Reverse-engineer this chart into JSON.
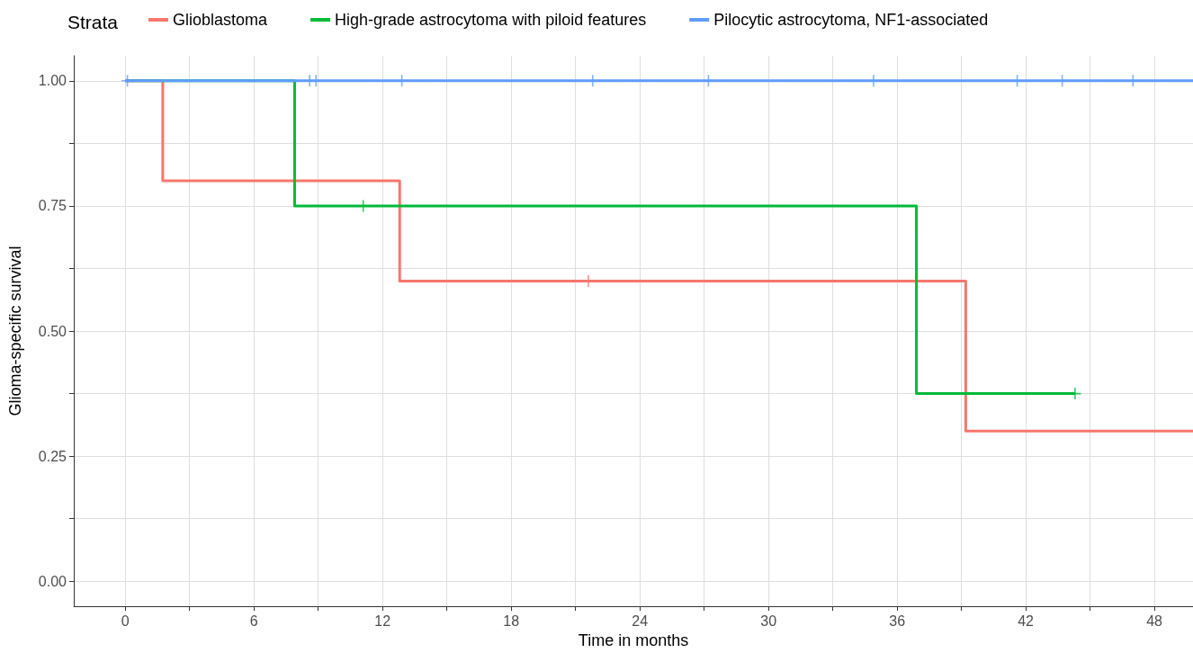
{
  "chart_data": {
    "type": "step",
    "xlabel": "Time in months",
    "ylabel": "Glioma-specific survival",
    "legend_title": "Strata",
    "legend": "top left",
    "grid": true,
    "line_style": "solid",
    "xlim": [
      -2.4,
      49.8
    ],
    "ylim": [
      -0.05,
      1.05
    ],
    "xticks": [
      0,
      {
        "value": 3,
        "label": null
      },
      6,
      {
        "value": 9,
        "label": null
      },
      12,
      {
        "value": 15,
        "label": null
      },
      18,
      {
        "value": 21,
        "label": null
      },
      24,
      {
        "value": 27,
        "label": null
      },
      30,
      {
        "value": 33,
        "label": null
      },
      36,
      {
        "value": 39,
        "label": null
      },
      42,
      {
        "value": 45,
        "label": null
      },
      48
    ],
    "yticks": [
      {
        "value": 0,
        "label": "0.00"
      },
      {
        "value": 0.125,
        "label": null
      },
      {
        "value": 0.25,
        "label": "0.25"
      },
      {
        "value": 0.375,
        "label": null
      },
      {
        "value": 0.5,
        "label": "0.50"
      },
      {
        "value": 0.625,
        "label": null
      },
      {
        "value": 0.75,
        "label": "0.75"
      },
      {
        "value": 0.875,
        "label": null
      },
      {
        "value": 1,
        "label": "1.00"
      }
    ],
    "series": [
      {
        "name": "Glioblastoma",
        "color": "#f8766d",
        "x": [
          0,
          1.75,
          12.8,
          39.2,
          49.8
        ],
        "values": [
          1,
          0.8,
          0.6,
          0.3,
          0.3
        ]
      },
      {
        "name": "High-grade astrocytoma with piloid features",
        "color": "#00ba38",
        "x": [
          0,
          7.9,
          36.9,
          44.3
        ],
        "values": [
          1,
          0.75,
          0.375,
          0.375
        ]
      },
      {
        "name": "Pilocytic astrocytoma, NF1-associated",
        "color": "#619cff",
        "x": [
          0,
          49.8
        ],
        "values": [
          1,
          1
        ]
      },
      {
        "type": "scatter",
        "marker": "cross",
        "color": "#f8766d",
        "x": [
          21.6
        ],
        "values": [
          0.6
        ]
      },
      {
        "type": "scatter",
        "marker": "cross",
        "color": "#00ba38",
        "x": [
          11.1,
          44.3
        ],
        "values": [
          0.75,
          0.375
        ]
      },
      {
        "type": "scatter",
        "marker": "cross",
        "color": "#619cff",
        "x": [
          0.1,
          8.6,
          8.9,
          12.9,
          21.8,
          27.2,
          34.9,
          41.6,
          43.7,
          47.0
        ],
        "values": [
          1,
          1,
          1,
          1,
          1,
          1,
          1,
          1,
          1,
          1
        ]
      }
    ]
  }
}
